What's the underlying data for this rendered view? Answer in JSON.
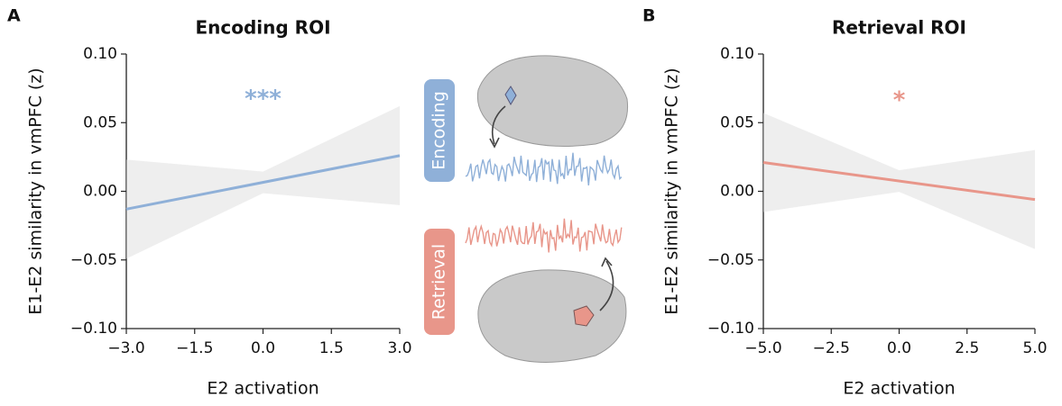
{
  "chart_data": [
    {
      "type": "line",
      "panel": "A",
      "title": "Encoding ROI",
      "xlabel": "E2 activation",
      "ylabel": "E1-E2 similarity in vmPFC (z)",
      "x": [
        -3,
        3
      ],
      "series": [
        {
          "color": "#8fb0d8",
          "values": [
            -0.013,
            0.026
          ]
        }
      ],
      "annotation": {
        "text": "***",
        "x": 0,
        "y": 0.067
      },
      "xlim": [
        -3,
        3
      ],
      "xticks": [
        {
          "value": -3,
          "label": "−3.0"
        },
        {
          "value": -1.5,
          "label": "−1.5"
        },
        {
          "value": 0,
          "label": "0.0"
        },
        {
          "value": 1.5,
          "label": "1.5"
        },
        {
          "value": 3,
          "label": "3.0"
        }
      ],
      "ylim": [
        -0.1,
        0.1
      ],
      "yticks": [
        {
          "value": -0.1,
          "label": "−0.10"
        },
        {
          "value": -0.05,
          "label": "−0.05"
        },
        {
          "value": 0,
          "label": "0.00"
        },
        {
          "value": 0.05,
          "label": "0.05"
        },
        {
          "value": 0.1,
          "label": "0.10"
        }
      ]
    },
    {
      "type": "line",
      "panel": "B",
      "title": "Retrieval ROI",
      "xlabel": "E2 activation",
      "ylabel": "E1-E2 similarity in vmPFC (z)",
      "x": [
        -5,
        5
      ],
      "series": [
        {
          "color": "#e8968a",
          "values": [
            0.021,
            -0.006
          ]
        }
      ],
      "annotation": {
        "text": "*",
        "x": 0,
        "y": 0.066
      },
      "xlim": [
        -5,
        5
      ],
      "xticks": [
        {
          "value": -5,
          "label": "−5.0"
        },
        {
          "value": -2.5,
          "label": "−2.5"
        },
        {
          "value": 0,
          "label": "0.0"
        },
        {
          "value": 2.5,
          "label": "2.5"
        },
        {
          "value": 5,
          "label": "5.0"
        }
      ],
      "ylim": [
        -0.1,
        0.1
      ],
      "yticks": [
        {
          "value": -0.1,
          "label": "−0.10"
        },
        {
          "value": -0.05,
          "label": "−0.05"
        },
        {
          "value": 0,
          "label": "0.00"
        },
        {
          "value": 0.05,
          "label": "0.05"
        },
        {
          "value": 0.1,
          "label": "0.10"
        }
      ]
    }
  ],
  "illustration": {
    "labels": [
      "Encoding",
      "Retrieval"
    ]
  }
}
